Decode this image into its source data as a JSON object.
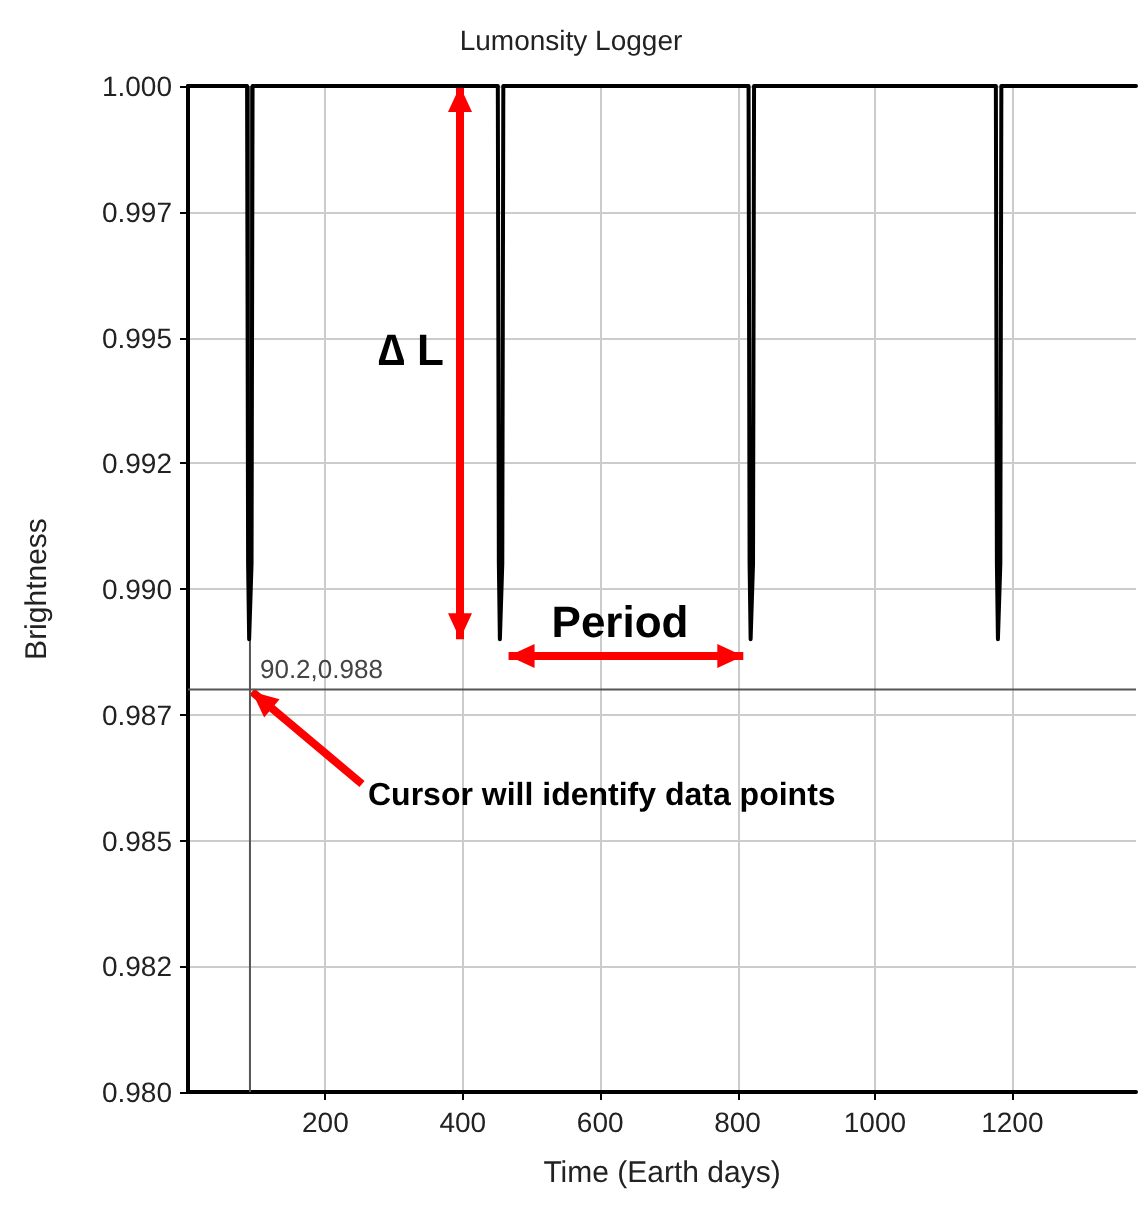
{
  "chart_data": {
    "type": "line",
    "title": "Lumonsity Logger",
    "xlabel": "Time (Earth days)",
    "ylabel": "Brightness",
    "series": [
      {
        "color": "#000000",
        "x": [
          0,
          86,
          87.5,
          89,
          91,
          92.5,
          94,
          451,
          452.5,
          454,
          456,
          457.5,
          459,
          816,
          817.5,
          819,
          821,
          822.5,
          824,
          1176,
          1177.5,
          1179,
          1181,
          1182.5,
          1184,
          1380
        ],
        "values": [
          1.0,
          1.0,
          0.9905,
          0.989,
          0.989,
          0.9905,
          1.0,
          1.0,
          0.9905,
          0.989,
          0.989,
          0.9905,
          1.0,
          1.0,
          0.9905,
          0.989,
          0.989,
          0.9905,
          1.0,
          1.0,
          0.9905,
          0.989,
          0.989,
          0.9905,
          1.0,
          1.0
        ]
      }
    ],
    "xlim": [
      0,
      1380
    ],
    "xticks": [
      200,
      400,
      600,
      800,
      1000,
      1200
    ],
    "ylim": [
      0.98,
      1.0
    ],
    "yticks": [
      {
        "value": 0.98,
        "label": "0.980"
      },
      {
        "value": 0.9825,
        "label": "0.982"
      },
      {
        "value": 0.985,
        "label": "0.985"
      },
      {
        "value": 0.9875,
        "label": "0.987"
      },
      {
        "value": 0.99,
        "label": "0.990"
      },
      {
        "value": 0.9925,
        "label": "0.992"
      },
      {
        "value": 0.995,
        "label": "0.995"
      },
      {
        "value": 0.9975,
        "label": "0.997"
      },
      {
        "value": 1.0,
        "label": "1.000"
      }
    ],
    "grid": true,
    "marker": "none",
    "line_style": "solid",
    "ref_lines": [
      {
        "axis": "x",
        "value": 90.2,
        "color": "#555555"
      },
      {
        "axis": "y",
        "value": 0.988,
        "label": "90.2,0.988",
        "color": "#555555"
      }
    ],
    "annotations": [
      "∆ L",
      "Period",
      {
        "text": "Cursor will identify data points",
        "x": 90.2,
        "y": 0.988
      }
    ]
  }
}
